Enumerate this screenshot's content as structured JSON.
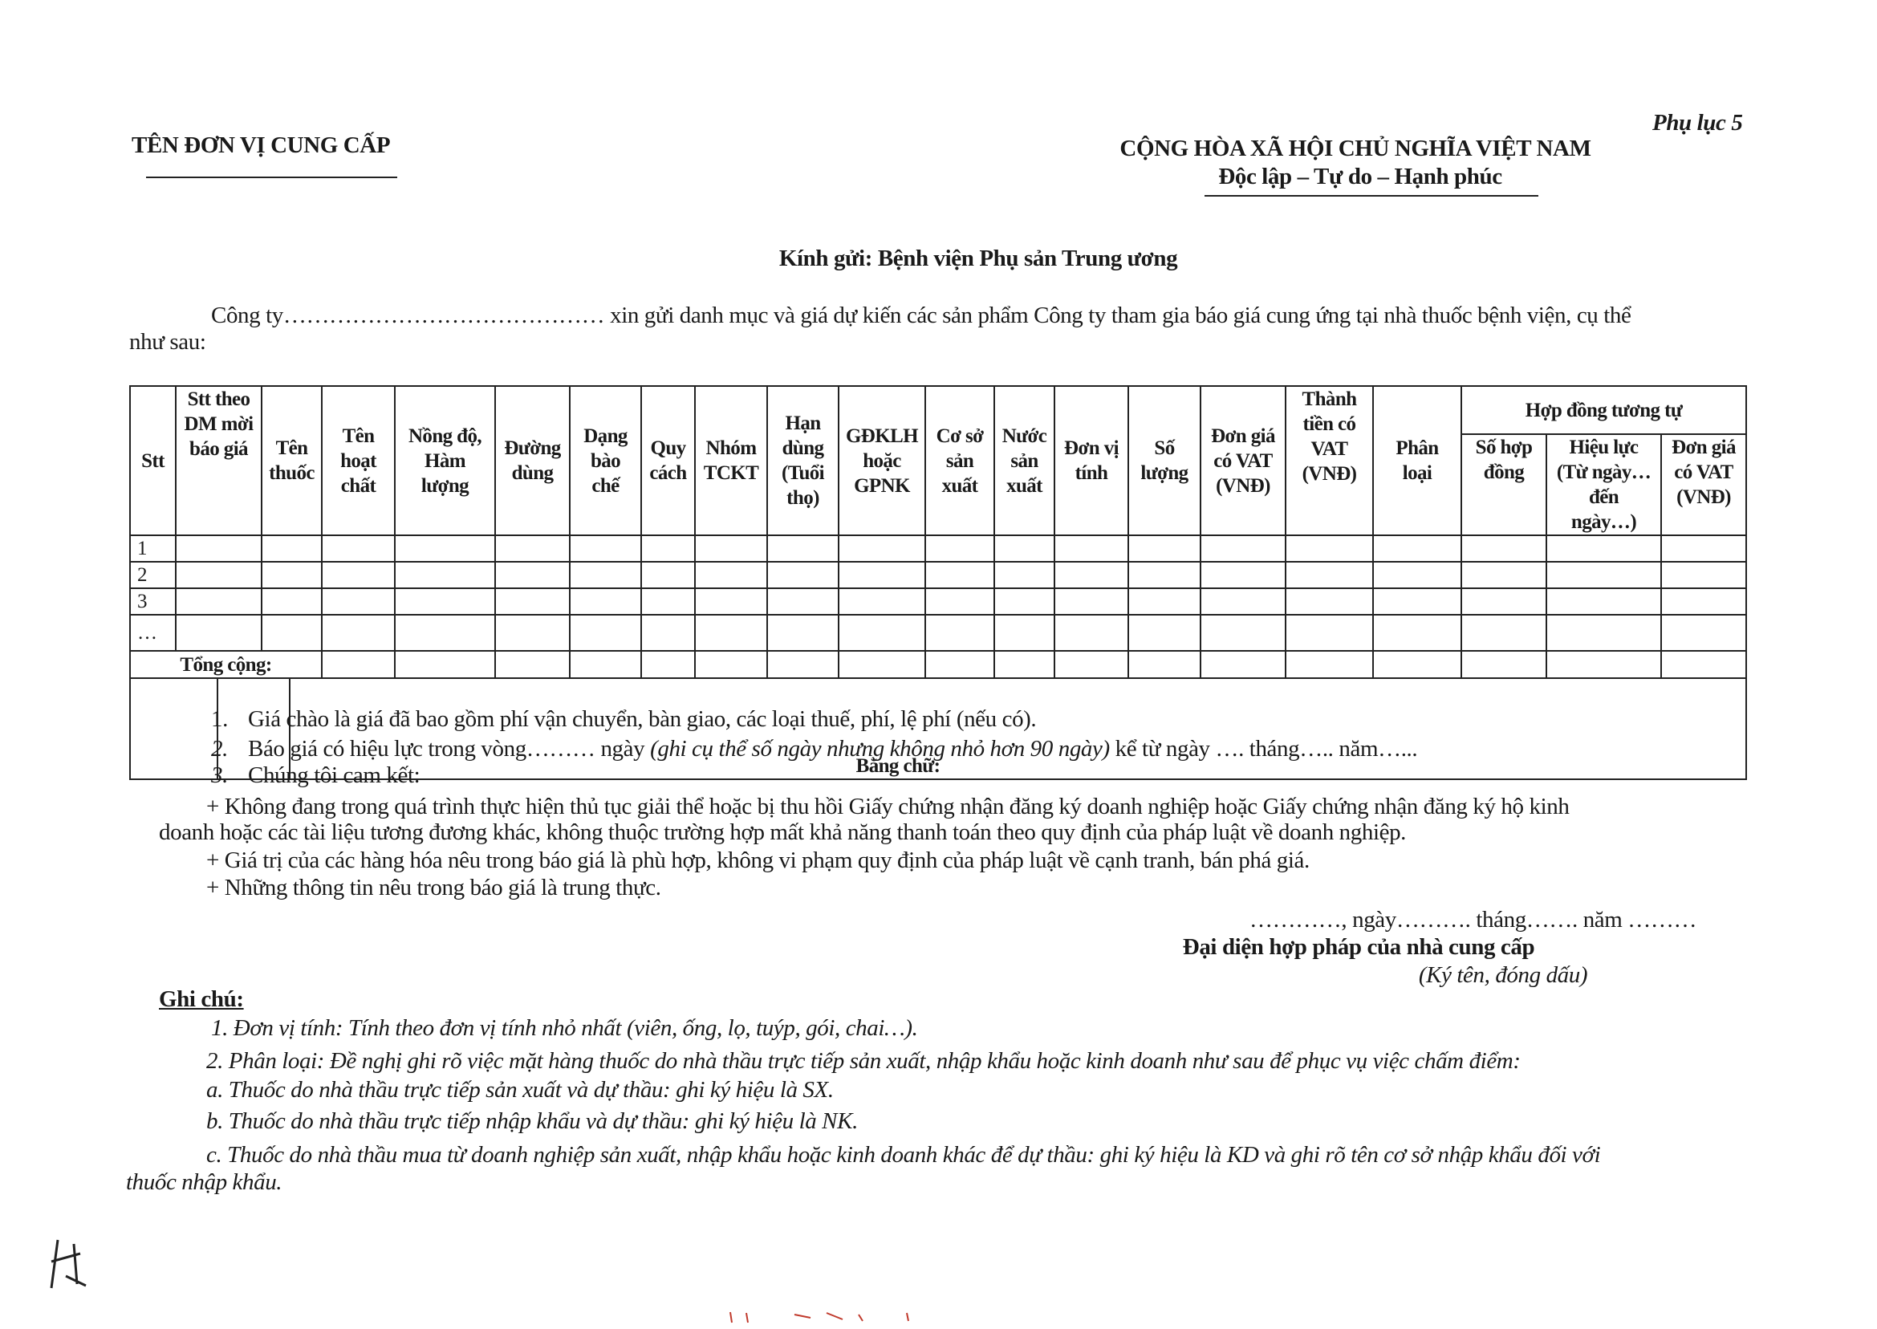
{
  "header": {
    "supplier_name_label": "TÊN ĐƠN VỊ CUNG CẤP",
    "appendix": "Phụ lục 5",
    "country": "CỘNG HÒA XÃ HỘI CHỦ NGHĨA VIỆT NAM",
    "motto": "Độc lập – Tự do – Hạnh phúc"
  },
  "recipient": "Kính gửi: Bệnh viện Phụ sản Trung ương",
  "intro": {
    "line1": "Công ty…………………………………… xin gửi danh mục và giá dự kiến các sản phẩm Công ty tham gia báo giá cung ứng tại nhà thuốc bệnh viện, cụ thể",
    "line2": "như sau:"
  },
  "table": {
    "columns": [
      "Stt",
      "Stt theo\nDM mời\nbáo giá\n\n",
      "Tên\nthuốc",
      "Tên\nhoạt\nchất",
      "Nồng độ,\nHàm\nlượng",
      "Đường\ndùng",
      "Dạng\nbào\nchế",
      "Quy\ncách",
      "Nhóm\nTCKT",
      "Hạn\ndùng\n(Tuổi\nthọ)",
      "GĐKLH\nhoặc\nGPNK",
      "Cơ sở\nsản\nxuất",
      "Nước\nsản\nxuất",
      "Đơn vị\ntính",
      "Số\nlượng",
      "Đơn giá\ncó VAT\n(VNĐ)",
      "Thành\ntiền có\nVAT\n(VNĐ)",
      "Phân\nloại"
    ],
    "group_header": "Hợp đồng tương tự",
    "group_columns": [
      "Số hợp\nđồng\n\n",
      "Hiệu lực\n(Từ ngày…\nđến\nngày…)",
      "Đơn giá\ncó VAT\n(VNĐ)\n"
    ],
    "rows": [
      "1",
      "2",
      "3",
      "…"
    ],
    "total_label": "Tổng cộng:",
    "in_words_label": "Bằng chữ:"
  },
  "terms": [
    {
      "num": "1.",
      "text": "Giá chào là giá đã bao gồm phí vận chuyển, bàn giao, các loại thuế, phí, lệ phí (nếu có)."
    },
    {
      "num": "2.",
      "text": "Báo giá có hiệu lực trong vòng……… ngày",
      "italic": "(ghi cụ thể số ngày nhưng không nhỏ hơn 90 ngày)",
      "tail": "kể từ ngày …. tháng….. năm…..."
    },
    {
      "num": "3.",
      "text": "Chúng tôi cam  kết:"
    }
  ],
  "commitments": [
    "+ Không đang trong quá trình thực hiện thủ tục giải thể hoặc bị thu hồi Giấy chứng nhận đăng ký doanh nghiệp hoặc Giấy chứng nhận đăng ký hộ kinh",
    "doanh hoặc các tài liệu tương đương khác, không thuộc trường hợp mất khả năng thanh toán theo quy định của pháp luật về doanh nghiệp.",
    "+ Giá trị của các hàng hóa nêu trong báo giá là phù hợp, không vi phạm quy định của pháp luật về cạnh tranh, bán phá giá.",
    "+ Những thông tin nêu trong báo giá là trung thực."
  ],
  "signature": {
    "date_line": "…………, ngày………. tháng……. năm ………",
    "title": "Đại diện hợp pháp của nhà cung cấp",
    "note": "(Ký tên, đóng dấu)"
  },
  "notes": {
    "heading": "Ghi chú:",
    "lines": [
      "1. Đơn vị tính: Tính theo đơn vị tính nhỏ nhất (viên, ống, lọ, tuýp, gói, chai…).",
      "2. Phân loại: Đề nghị ghi rõ việc mặt hàng thuốc do nhà thầu trực tiếp sản xuất, nhập khẩu hoặc kinh doanh như sau để phục vụ việc chấm điểm:",
      "a. Thuốc do nhà thầu trực tiếp sản xuất và dự thầu: ghi ký hiệu là SX.",
      "b. Thuốc do nhà thầu trực tiếp nhập khẩu và dự thầu: ghi ký hiệu là NK.",
      "c. Thuốc do nhà thầu mua từ doanh nghiệp sản xuất, nhập khẩu hoặc kinh doanh khác để dự thầu: ghi ký hiệu là KD và ghi rõ tên cơ sở nhập khẩu đối với",
      "thuốc nhập khẩu."
    ]
  },
  "colors": {
    "ink": "#1a1a1a",
    "paper": "#ffffff",
    "stamp_marks": "#c0392b"
  }
}
